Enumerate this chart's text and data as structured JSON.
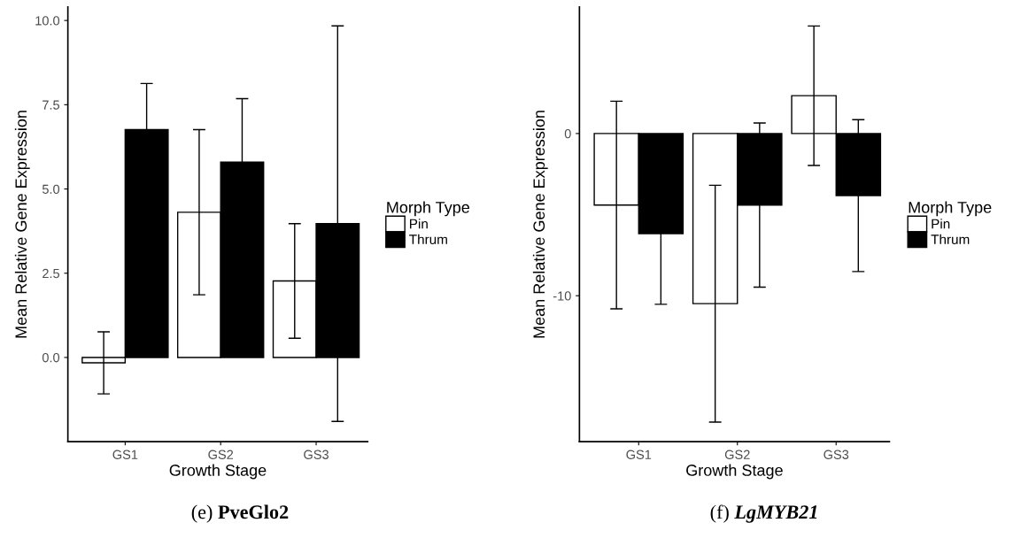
{
  "chart_data": [
    {
      "type": "bar",
      "xlabel": "Growth Stage",
      "ylabel": "Mean Relative Gene Expression",
      "legend_title": "Morph Type",
      "legend": "right",
      "grid": false,
      "categories": [
        "GS1",
        "GS2",
        "GS3"
      ],
      "ylim": [
        -2.5,
        10.4
      ],
      "yticks": [
        {
          "value": 0,
          "label": "0.0"
        },
        {
          "value": 2.5,
          "label": "2.5"
        },
        {
          "value": 5,
          "label": "5.0"
        },
        {
          "value": 7.5,
          "label": "7.5"
        },
        {
          "value": 10,
          "label": "10.0"
        }
      ],
      "series": [
        {
          "name": "Pin",
          "color": "#ffffff",
          "values": [
            -0.16,
            4.31,
            2.27
          ],
          "errors": [
            0.92,
            2.45,
            1.7
          ]
        },
        {
          "name": "Thrum",
          "color": "#000000",
          "values": [
            6.76,
            5.8,
            3.97
          ],
          "errors": [
            1.37,
            1.88,
            5.87
          ]
        }
      ],
      "annotations": [
        "(e) PveGlo2"
      ]
    },
    {
      "type": "bar",
      "xlabel": "Growth Stage",
      "ylabel": "Mean Relative Gene Expression",
      "legend_title": "Morph Type",
      "legend": "right",
      "grid": false,
      "categories": [
        "GS1",
        "GS2",
        "GS3"
      ],
      "ylim": [
        -19.0,
        7.8
      ],
      "yticks": [
        -10,
        0
      ],
      "series": [
        {
          "name": "Pin",
          "color": "#ffffff",
          "values": [
            -4.41,
            -10.49,
            2.33
          ],
          "errors": [
            6.4,
            7.3,
            4.3
          ]
        },
        {
          "name": "Thrum",
          "color": "#000000",
          "values": [
            -6.17,
            -4.41,
            -3.83
          ],
          "errors": [
            4.36,
            5.06,
            4.68
          ]
        }
      ],
      "annotations": [
        "(f) LgMYB21"
      ]
    }
  ]
}
